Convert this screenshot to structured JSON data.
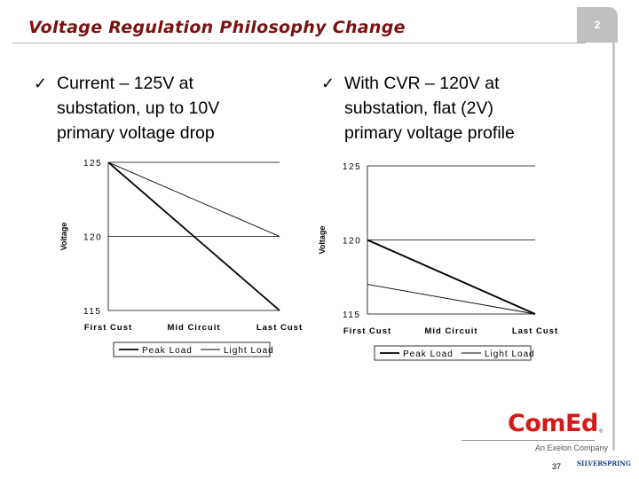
{
  "slide": {
    "title": "Voltage Regulation Philosophy Change",
    "page_tab": "2",
    "page_number": "37"
  },
  "bullets": [
    {
      "check": "✓",
      "lines": [
        "Current – 125V at",
        "substation, up to 10V",
        "primary voltage drop"
      ]
    },
    {
      "check": "✓",
      "lines": [
        "With CVR – 120V at",
        "substation, flat (2V)",
        "primary voltage profile"
      ]
    }
  ],
  "logos": {
    "comed": "ComEd",
    "registered": "®",
    "exelon": "An Exelon Company",
    "silverspring": "SILVERSPRING"
  },
  "chart_data": [
    {
      "type": "line",
      "title": "",
      "xlabel": "",
      "ylabel": "Voltage",
      "categories": [
        "First Cust",
        "Mid Circuit",
        "Last Cust"
      ],
      "ylim": [
        115,
        125
      ],
      "yticks": [
        "125",
        "120",
        "115"
      ],
      "grid": true,
      "legend": "bottom",
      "series": [
        {
          "name": "Peak Load",
          "values": [
            125,
            120,
            115
          ],
          "color": "#000000",
          "stroke": "heavy"
        },
        {
          "name": "Light Load",
          "values": [
            125,
            122.5,
            120
          ],
          "color": "#000000",
          "stroke": "light"
        }
      ]
    },
    {
      "type": "line",
      "title": "",
      "xlabel": "",
      "ylabel": "Voltage",
      "categories": [
        "First Cust",
        "Mid Circuit",
        "Last Cust"
      ],
      "ylim": [
        115,
        125
      ],
      "yticks": [
        "125",
        "120",
        "115"
      ],
      "grid": true,
      "legend": "bottom",
      "series": [
        {
          "name": "Peak Load",
          "values": [
            120,
            117.5,
            115
          ],
          "color": "#000000",
          "stroke": "heavy"
        },
        {
          "name": "Light Load",
          "values": [
            117,
            116,
            115
          ],
          "color": "#000000",
          "stroke": "light"
        }
      ]
    }
  ]
}
